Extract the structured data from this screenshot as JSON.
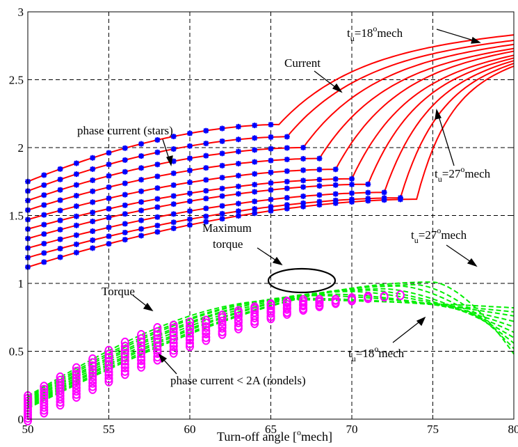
{
  "chart_data": {
    "type": "line",
    "title": "",
    "xlabel_main": "Turn-off angle [",
    "xlabel_sup": "o",
    "xlabel_end": "mech]",
    "ylabel": "",
    "xlim": [
      50,
      80
    ],
    "ylim": [
      0,
      3
    ],
    "xticks": [
      50,
      55,
      60,
      65,
      70,
      75,
      80
    ],
    "yticks": [
      0,
      0.5,
      1,
      1.5,
      2,
      2.5,
      3
    ],
    "ytick_labels": [
      "0",
      "0.5",
      "1",
      "1.5",
      "2",
      "2.5",
      "3"
    ],
    "grid": true,
    "colors": {
      "current_line": "#ff0000",
      "phase_marker": "#0000ff",
      "torque_line": "#00ee00",
      "torque_marker": "#ff00ff",
      "axis": "#000000"
    },
    "current_curves": {
      "tu_start": 18,
      "tu_end": 27,
      "x_start": 50,
      "x_end": 80,
      "start_values": [
        1.75,
        1.68,
        1.61,
        1.54,
        1.47,
        1.4,
        1.33,
        1.26,
        1.19,
        1.12
      ],
      "plateau_end_values": [
        2.17,
        2.08,
        2.0,
        1.92,
        1.84,
        1.77,
        1.73,
        1.67,
        1.63,
        1.62
      ],
      "knee_x": [
        65.5,
        66,
        67,
        68,
        69,
        70,
        71,
        72,
        73,
        74
      ],
      "end_values": [
        2.83,
        2.79,
        2.76,
        2.73,
        2.71,
        2.68,
        2.66,
        2.64,
        2.62,
        2.6
      ]
    },
    "phase_current_points": {
      "series_last_x": [
        65,
        66,
        67,
        68,
        69,
        70,
        71,
        72,
        73,
        73
      ]
    },
    "torque_curves": {
      "start_values": [
        0.17,
        0.16,
        0.15,
        0.14,
        0.13,
        0.12,
        0.11,
        0.1,
        0.09,
        0.08
      ],
      "peak_x": [
        66,
        67,
        68,
        69,
        70,
        71,
        72,
        73,
        74,
        75
      ],
      "peak_values": [
        0.88,
        0.89,
        0.91,
        0.92,
        0.94,
        0.95,
        0.96,
        0.98,
        0.99,
        1.01
      ],
      "end_values": [
        0.82,
        0.79,
        0.76,
        0.72,
        0.68,
        0.64,
        0.6,
        0.56,
        0.52,
        0.48
      ]
    },
    "torque_points": {
      "series_last_x": [
        58,
        59,
        60,
        66,
        67,
        68,
        69,
        71,
        72,
        73
      ]
    },
    "annotations": {
      "current": "Current",
      "phase_current": "phase current (stars)",
      "tu_prefix": "t",
      "tu_sub": "u",
      "tu_18": "=18",
      "tu_27": "=27",
      "deg": "o",
      "mech": "mech",
      "max_torque_line1": "Maximum",
      "max_torque_line2": "torque",
      "torque": "Torque",
      "rondels": "phase current < 2A (rondels)"
    }
  }
}
